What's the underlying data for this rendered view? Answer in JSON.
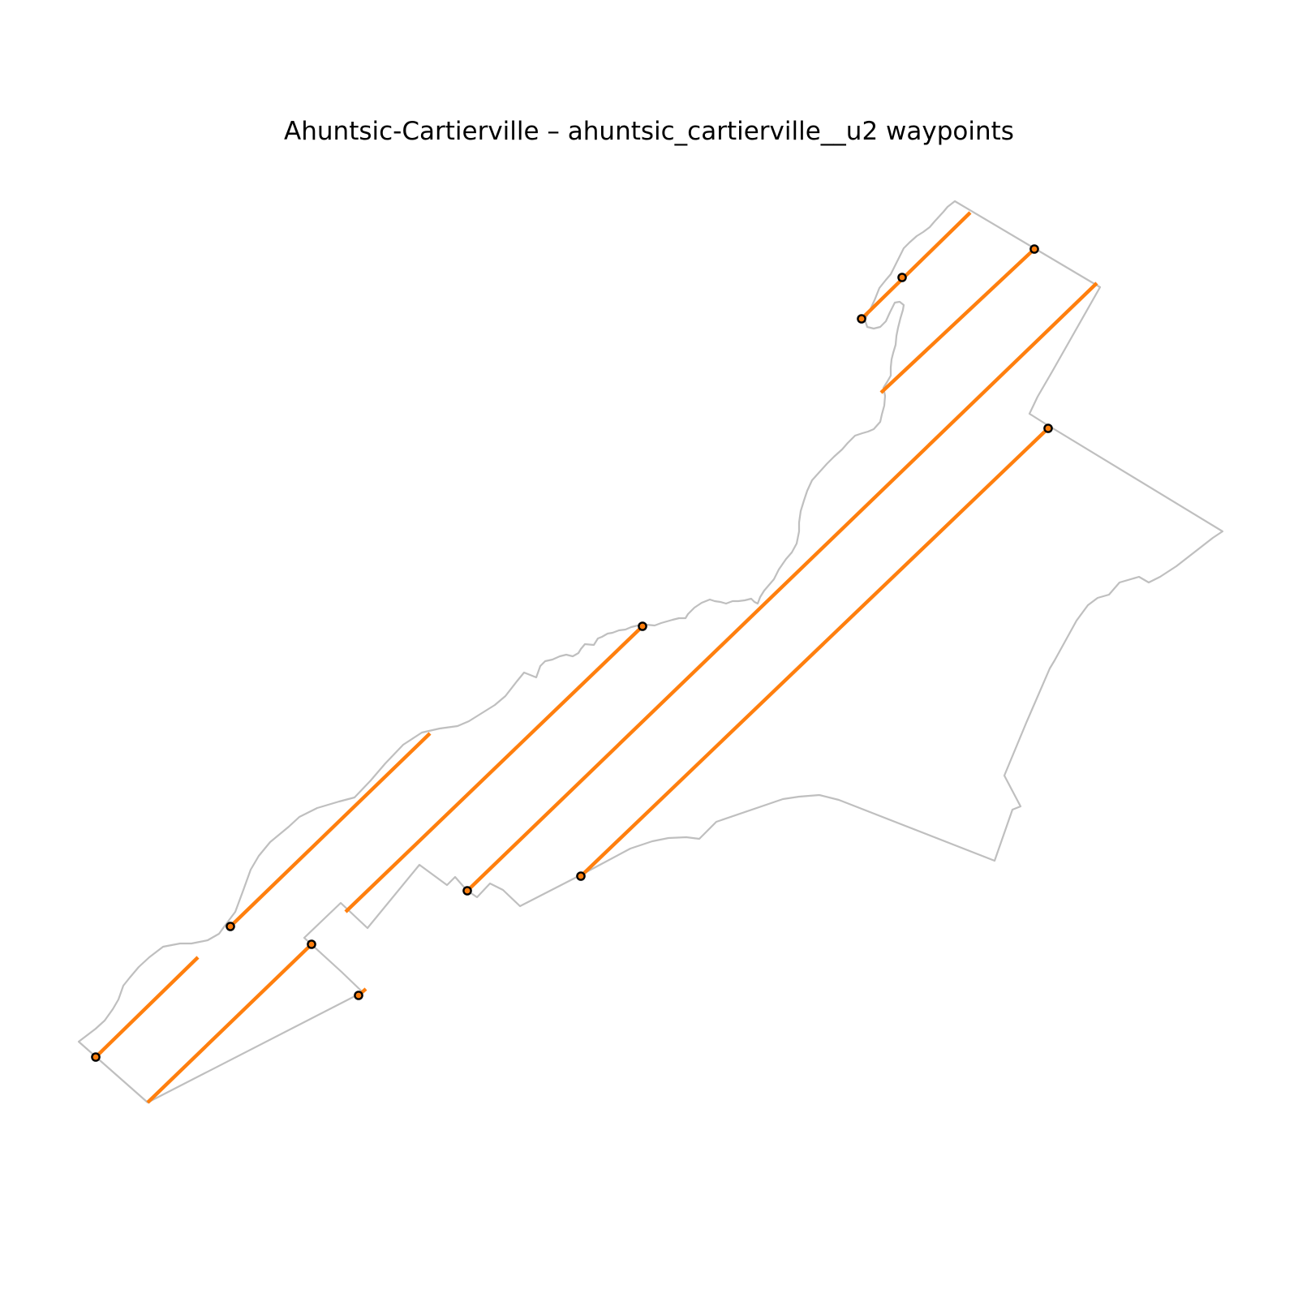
{
  "title": "Ahuntsic-Cartierville – ahuntsic_cartierville__u2 waypoints",
  "colors": {
    "background": "#ffffff",
    "boundary": "#bfbfbf",
    "path": "#ff7f0e",
    "waypoint_fill": "#ff7f0e",
    "waypoint_edge": "#000000",
    "title": "#000000"
  },
  "map": {
    "borough": "Ahuntsic-Cartierville",
    "route_id": "ahuntsic_cartierville__u2",
    "axes_visible": false,
    "pass_count": 9,
    "waypoint_count": 12
  }
}
